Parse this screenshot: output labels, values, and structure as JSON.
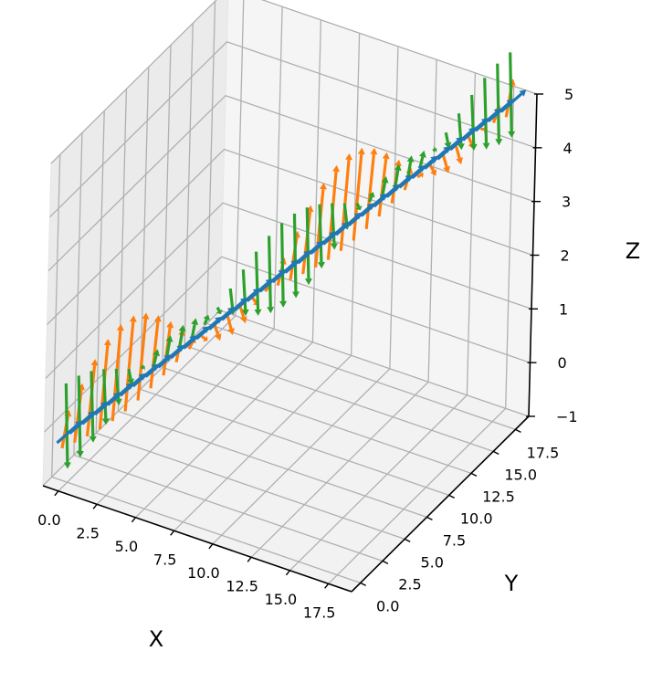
{
  "chart_data": {
    "type": "quiver3d",
    "title": "",
    "xlabel": "X",
    "ylabel": "Y",
    "zlabel": "Z",
    "xlim": [
      -1,
      19
    ],
    "ylim": [
      -1,
      19
    ],
    "zlim": [
      -1,
      5
    ],
    "xticks": [
      "0.0",
      "2.5",
      "5.0",
      "7.5",
      "10.0",
      "12.5",
      "15.0",
      "17.5"
    ],
    "yticks": [
      "0.0",
      "2.5",
      "5.0",
      "7.5",
      "10.0",
      "12.5",
      "15.0",
      "17.5"
    ],
    "zticks": [
      "−1",
      "0",
      "1",
      "2",
      "3",
      "4",
      "5"
    ],
    "xtick_values": [
      0,
      2.5,
      5,
      7.5,
      10,
      12.5,
      15,
      17.5
    ],
    "ytick_values": [
      0,
      2.5,
      5,
      7.5,
      10,
      12.5,
      15,
      17.5
    ],
    "ztick_values": [
      -1,
      0,
      1,
      2,
      3,
      4,
      5
    ],
    "grid": true,
    "path": {
      "start": [
        0,
        0,
        0
      ],
      "end": [
        18,
        18,
        5
      ],
      "count": 36
    },
    "series": [
      {
        "color": "#1f77b4",
        "component": "tangent",
        "length": 0.8
      },
      {
        "color": "#ff7f0e",
        "component": "sine",
        "amplitude": 1.0,
        "frequency": 2
      },
      {
        "color": "#2ca02c",
        "component": "cosine",
        "amplitude": 1.0,
        "frequency": 2
      }
    ]
  }
}
